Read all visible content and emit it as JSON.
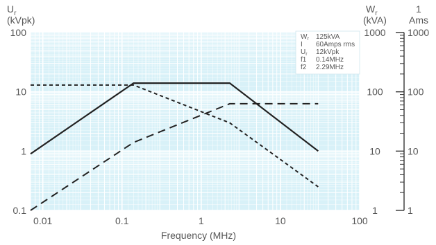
{
  "chart_data": {
    "type": "line",
    "title": "",
    "xlabel": "Frequency (MHz)",
    "x_scale": "log",
    "xlim": [
      0.007,
      100
    ],
    "x_ticks": [
      "0.01",
      "0.1",
      "1",
      "10",
      "100"
    ],
    "x_tick_values": [
      0.01,
      0.1,
      1,
      10,
      100
    ],
    "left_axis": {
      "label_main": "U",
      "label_sub": "r",
      "unit": "(kVpk)",
      "scale": "log",
      "lim": [
        0.1,
        100
      ],
      "ticks": [
        "0.1",
        "1",
        "10",
        "100"
      ],
      "tick_values": [
        0.1,
        1,
        10,
        100
      ]
    },
    "mid_axis": {
      "label_main": "W",
      "label_sub": "r",
      "unit": "(kVA)",
      "scale": "log",
      "lim": [
        1,
        1000
      ],
      "ticks": [
        "1",
        "10",
        "100",
        "1000"
      ],
      "tick_values": [
        1,
        10,
        100,
        1000
      ]
    },
    "right_axis": {
      "label_main": "1",
      "unit": "Ams",
      "scale": "log",
      "lim": [
        1,
        1000
      ],
      "ticks": [
        "1",
        "10",
        "100",
        "1000"
      ],
      "tick_values": [
        1,
        10,
        100,
        1000
      ]
    },
    "grid": true,
    "legend_position": "top-right",
    "legend_box": [
      {
        "key": "W",
        "sub": "r",
        "value": "125kVA"
      },
      {
        "key": "I",
        "sub": "",
        "value": "60Amps rms"
      },
      {
        "key": "U",
        "sub": "r",
        "value": "12kVpk"
      },
      {
        "key": "f1",
        "sub": "",
        "value": "0.14MHz"
      },
      {
        "key": "f2",
        "sub": "",
        "value": "2.29MHz"
      }
    ],
    "series": [
      {
        "style": "solid",
        "axis": "left",
        "x": [
          0.007,
          0.14,
          2.29,
          30
        ],
        "y": [
          0.9,
          14,
          14,
          1
        ]
      },
      {
        "style": "short-dash",
        "axis": "left",
        "x": [
          0.007,
          0.14,
          2.29,
          30
        ],
        "y": [
          13,
          13,
          3,
          0.25
        ]
      },
      {
        "style": "long-dash",
        "axis": "left",
        "x": [
          0.007,
          0.14,
          2.29,
          30
        ],
        "y": [
          0.1,
          1.4,
          6.3,
          6.3
        ]
      }
    ],
    "colors": {
      "plot_bg": "#d8f1f8",
      "grid": "#ffffff",
      "line": "#222222",
      "text": "#555555"
    }
  }
}
